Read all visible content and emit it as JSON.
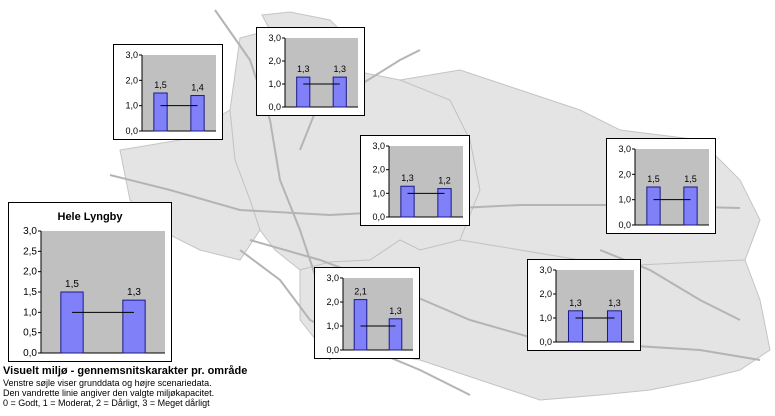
{
  "colors": {
    "map_fill": "#e4e4e4",
    "map_stroke": "#c4c4c4",
    "road": "#b4b4b4",
    "plot_bg": "#c0c0c0",
    "bar_fill": "#8080f8",
    "bar_stroke": "#1a1a88",
    "capacity_line": "#000000"
  },
  "caption": {
    "title": "Visuelt miljø - gennemsnitskarakter pr. område",
    "line1": "Venstre søjle viser grunddata og højre scenariedata.",
    "line2": "Den vandrette linie angiver den valgte miljøkapacitet.",
    "line3": "0 = Godt, 1 = Moderat, 2 = Dårligt, 3 = Meget dårligt"
  },
  "chart_data": [
    {
      "type": "bar",
      "title": "Hele Lyngby",
      "categories": [
        "Grunddata",
        "Scenariedata"
      ],
      "values": [
        1.5,
        1.3
      ],
      "labels": [
        "1,5",
        "1,3"
      ],
      "capacity": 1.0,
      "ylim": [
        0,
        3
      ],
      "yticks": [
        "0,0",
        "0,5",
        "1,0",
        "1,5",
        "2,0",
        "2,5",
        "3,0"
      ]
    },
    {
      "type": "bar",
      "title": "",
      "categories": [
        "Grunddata",
        "Scenariedata"
      ],
      "values": [
        1.5,
        1.4
      ],
      "labels": [
        "1,5",
        "1,4"
      ],
      "capacity": 1.0,
      "ylim": [
        0,
        3
      ],
      "yticks": [
        "0,0",
        "1,0",
        "2,0",
        "3,0"
      ]
    },
    {
      "type": "bar",
      "title": "",
      "categories": [
        "Grunddata",
        "Scenariedata"
      ],
      "values": [
        1.3,
        1.3
      ],
      "labels": [
        "1,3",
        "1,3"
      ],
      "capacity": 1.0,
      "ylim": [
        0,
        3
      ],
      "yticks": [
        "0,0",
        "1,0",
        "2,0",
        "3,0"
      ]
    },
    {
      "type": "bar",
      "title": "",
      "categories": [
        "Grunddata",
        "Scenariedata"
      ],
      "values": [
        1.3,
        1.2
      ],
      "labels": [
        "1,3",
        "1,2"
      ],
      "capacity": 1.0,
      "ylim": [
        0,
        3
      ],
      "yticks": [
        "0,0",
        "1,0",
        "2,0",
        "3,0"
      ]
    },
    {
      "type": "bar",
      "title": "",
      "categories": [
        "Grunddata",
        "Scenariedata"
      ],
      "values": [
        1.5,
        1.5
      ],
      "labels": [
        "1,5",
        "1,5"
      ],
      "capacity": 1.0,
      "ylim": [
        0,
        3
      ],
      "yticks": [
        "0,0",
        "1,0",
        "2,0",
        "3,0"
      ]
    },
    {
      "type": "bar",
      "title": "",
      "categories": [
        "Grunddata",
        "Scenariedata"
      ],
      "values": [
        2.1,
        1.3
      ],
      "labels": [
        "2,1",
        "1,3"
      ],
      "capacity": 1.0,
      "ylim": [
        0,
        3
      ],
      "yticks": [
        "0,0",
        "1,0",
        "2,0",
        "3,0"
      ]
    },
    {
      "type": "bar",
      "title": "",
      "categories": [
        "Grunddata",
        "Scenariedata"
      ],
      "values": [
        1.3,
        1.3
      ],
      "labels": [
        "1,3",
        "1,3"
      ],
      "capacity": 1.0,
      "ylim": [
        0,
        3
      ],
      "yticks": [
        "0,0",
        "1,0",
        "2,0",
        "3,0"
      ]
    }
  ]
}
